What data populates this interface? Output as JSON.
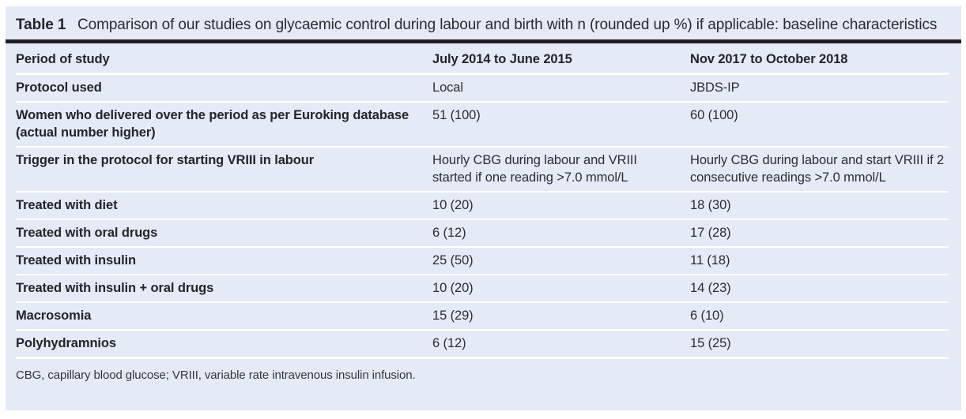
{
  "table": {
    "label": "Table 1",
    "title": "Comparison of our studies on glycaemic control during labour and birth with n (rounded up %) if applicable: baseline characteristics",
    "columns": [
      "Period of study",
      "July 2014 to June 2015",
      "Nov 2017 to October 2018"
    ],
    "rows": [
      {
        "label": "Protocol used",
        "col1": "Local",
        "col2": "JBDS-IP"
      },
      {
        "label": "Women who delivered over the period as per Euroking database (actual number higher)",
        "col1": "51 (100)",
        "col2": "60 (100)"
      },
      {
        "label": "Trigger in the protocol for starting VRIII in labour",
        "col1": "Hourly CBG during labour and VRIII started if one reading >7.0 mmol/L",
        "col2": "Hourly CBG during labour and start VRIII if 2 consecutive readings >7.0 mmol/L"
      },
      {
        "label": "Treated with diet",
        "col1": "10 (20)",
        "col2": "18 (30)"
      },
      {
        "label": "Treated with oral drugs",
        "col1": "6 (12)",
        "col2": "17 (28)"
      },
      {
        "label": "Treated with insulin",
        "col1": "25 (50)",
        "col2": "11 (18)"
      },
      {
        "label": "Treated with insulin + oral drugs",
        "col1": "10 (20)",
        "col2": "14 (23)"
      },
      {
        "label": "Macrosomia",
        "col1": "15 (29)",
        "col2": "6 (10)"
      },
      {
        "label": "Polyhydramnios",
        "col1": "6 (12)",
        "col2": "15 (25)"
      }
    ],
    "footnote": "CBG, capillary blood glucose; VRIII, variable rate intravenous insulin infusion.",
    "colors": {
      "panel_bg": "#e4eaf6",
      "title_rule": "#231f20",
      "row_separator": "#ffffff",
      "text": "#2b2e33"
    }
  }
}
